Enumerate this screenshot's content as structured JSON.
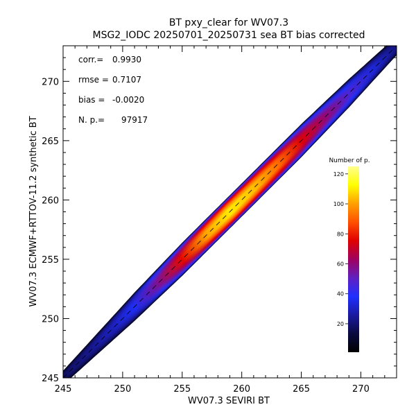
{
  "chart_data": {
    "type": "heatmap",
    "title": "BT pxy_clear for WV07.3",
    "subtitle": "MSG2_IODC 20250701_20250731 sea BT bias corrected",
    "xlabel": "WV07.3 SEVIRI BT",
    "ylabel": "WV07.3 ECMWF+RTTOV-11.2 synthetic BT",
    "xlim": [
      245,
      273
    ],
    "ylim": [
      245,
      273
    ],
    "x_ticks": [
      "245",
      "250",
      "255",
      "260",
      "265",
      "270"
    ],
    "y_ticks": [
      "245",
      "250",
      "255",
      "260",
      "265",
      "270"
    ],
    "grid": false,
    "reference_line": {
      "style": "dashed",
      "from": [
        245,
        245
      ],
      "to": [
        273,
        273
      ]
    },
    "statistics": [
      {
        "label": "corr.=",
        "value": "0.9930"
      },
      {
        "label": "rmse =",
        "value": "0.7107"
      },
      {
        "label": "bias =",
        "value": "-0.0020"
      },
      {
        "label": "N. p.=",
        "value": "97917"
      }
    ],
    "colorbar": {
      "title": "Number of p.",
      "range": [
        1,
        125
      ],
      "ticks": [
        "20",
        "40",
        "60",
        "80",
        "100",
        "120"
      ],
      "colors": [
        "#000000",
        "#0a0a40",
        "#1a1aa0",
        "#2030ff",
        "#6020c0",
        "#a00060",
        "#e00000",
        "#ff5000",
        "#ffa000",
        "#ffff00",
        "#ffff90"
      ]
    },
    "density_band": [
      {
        "x": 245,
        "half_width": 0.6,
        "density": 0.12
      },
      {
        "x": 248,
        "half_width": 0.9,
        "density": 0.18
      },
      {
        "x": 251,
        "half_width": 1.2,
        "density": 0.28
      },
      {
        "x": 253,
        "half_width": 1.3,
        "density": 0.45
      },
      {
        "x": 255,
        "half_width": 1.4,
        "density": 0.62
      },
      {
        "x": 257,
        "half_width": 1.4,
        "density": 0.82
      },
      {
        "x": 259,
        "half_width": 1.4,
        "density": 0.9
      },
      {
        "x": 261,
        "half_width": 1.4,
        "density": 0.85
      },
      {
        "x": 263,
        "half_width": 1.4,
        "density": 0.75
      },
      {
        "x": 265,
        "half_width": 1.4,
        "density": 0.6
      },
      {
        "x": 267,
        "half_width": 1.3,
        "density": 0.48
      },
      {
        "x": 269,
        "half_width": 1.2,
        "density": 0.36
      },
      {
        "x": 271,
        "half_width": 1.0,
        "density": 0.25
      },
      {
        "x": 273,
        "half_width": 0.8,
        "density": 0.15
      }
    ]
  }
}
